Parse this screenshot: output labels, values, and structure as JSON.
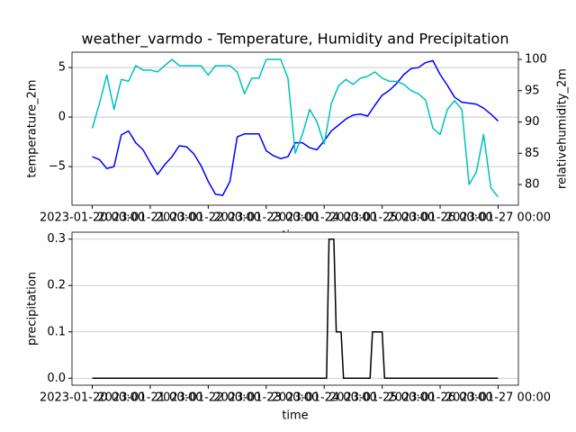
{
  "chart_data": [
    {
      "type": "line",
      "title": "weather_varmdo - Temperature, Humidity and Precipitation",
      "xlabel": "time",
      "ylabel": "temperature_2m",
      "ylabel_color": "#0000ff",
      "y2label": "relativehumidity_2m",
      "y2label_color": "#00bfbf",
      "x": [
        "2023-01-20 00:00",
        "2023-01-20 03:00",
        "2023-01-20 06:00",
        "2023-01-20 09:00",
        "2023-01-20 12:00",
        "2023-01-20 15:00",
        "2023-01-20 18:00",
        "2023-01-20 21:00",
        "2023-01-21 00:00",
        "2023-01-21 03:00",
        "2023-01-21 06:00",
        "2023-01-21 09:00",
        "2023-01-21 12:00",
        "2023-01-21 15:00",
        "2023-01-21 18:00",
        "2023-01-21 21:00",
        "2023-01-22 00:00",
        "2023-01-22 03:00",
        "2023-01-22 06:00",
        "2023-01-22 09:00",
        "2023-01-22 12:00",
        "2023-01-22 15:00",
        "2023-01-22 18:00",
        "2023-01-22 21:00",
        "2023-01-23 00:00",
        "2023-01-23 03:00",
        "2023-01-23 06:00",
        "2023-01-23 09:00",
        "2023-01-23 12:00",
        "2023-01-23 15:00",
        "2023-01-23 18:00",
        "2023-01-23 21:00",
        "2023-01-24 00:00",
        "2023-01-24 03:00",
        "2023-01-24 06:00",
        "2023-01-24 09:00",
        "2023-01-24 12:00",
        "2023-01-24 15:00",
        "2023-01-24 18:00",
        "2023-01-24 21:00",
        "2023-01-25 00:00",
        "2023-01-25 03:00",
        "2023-01-25 06:00",
        "2023-01-25 09:00",
        "2023-01-25 12:00",
        "2023-01-25 15:00",
        "2023-01-25 18:00",
        "2023-01-25 21:00",
        "2023-01-26 00:00",
        "2023-01-26 03:00",
        "2023-01-26 06:00",
        "2023-01-26 09:00",
        "2023-01-26 12:00",
        "2023-01-26 15:00",
        "2023-01-26 18:00",
        "2023-01-26 21:00",
        "2023-01-27 00:00"
      ],
      "series": [
        {
          "color": "#0000ff",
          "values": [
            -4.0,
            -4.3,
            -5.2,
            -5.0,
            -1.8,
            -1.4,
            -2.6,
            -3.3,
            -4.6,
            -5.8,
            -4.8,
            -4.0,
            -2.9,
            -3.0,
            -3.7,
            -4.9,
            -6.5,
            -7.8,
            -7.9,
            -6.5,
            -2.0,
            -1.7,
            -1.7,
            -1.7,
            -3.4,
            -3.9,
            -4.2,
            -4.0,
            -2.6,
            -2.6,
            -3.1,
            -3.3,
            -2.4,
            -1.4,
            -0.8,
            -0.2,
            0.2,
            0.3,
            0.1,
            1.2,
            2.2,
            2.7,
            3.4,
            4.3,
            4.9,
            5.0,
            5.5,
            5.7,
            4.3,
            3.2,
            2.0,
            1.5,
            1.4,
            1.3,
            0.9,
            0.3,
            -0.4
          ]
        },
        {
          "color": "#00bfbf",
          "axis": "y2",
          "values": [
            89.0,
            93.0,
            97.5,
            92.0,
            96.8,
            96.5,
            99.0,
            98.3,
            98.3,
            98.0,
            99.0,
            100.0,
            99.0,
            99.0,
            99.0,
            99.0,
            97.5,
            99.0,
            99.0,
            99.0,
            98.0,
            94.5,
            97.0,
            97.0,
            100.0,
            100.0,
            100.0,
            97.0,
            85.0,
            88.0,
            92.0,
            90.0,
            86.5,
            93.0,
            95.8,
            96.8,
            96.0,
            97.0,
            97.3,
            98.0,
            97.0,
            96.5,
            96.5,
            96.0,
            95.0,
            94.5,
            93.5,
            89.0,
            88.0,
            92.0,
            93.4,
            92.0,
            80.0,
            82.0,
            88.0,
            79.5,
            78.0
          ]
        }
      ],
      "xlim": [
        "2023-01-19 15:36",
        "2023-01-27 08:24"
      ],
      "xticks": [
        "2023-01-20 00:00",
        "2023-01-21 00:00",
        "2023-01-22 00:00",
        "2023-01-23 00:00",
        "2023-01-24 00:00",
        "2023-01-25 00:00",
        "2023-01-26 00:00",
        "2023-01-27 00:00"
      ],
      "ylim": [
        -8.9,
        6.55
      ],
      "yticks": [
        {
          "value": -5,
          "label": "−5"
        },
        0,
        5
      ],
      "y2lim": [
        76.7,
        101.15
      ],
      "y2ticks": [
        80,
        85,
        90,
        95,
        100
      ],
      "grid": true
    },
    {
      "type": "line",
      "xlabel": "time",
      "ylabel": "precipitation",
      "x": [
        "2023-01-20 00:00",
        "2023-01-24 01:00",
        "2023-01-24 02:00",
        "2023-01-24 04:00",
        "2023-01-24 05:00",
        "2023-01-24 07:00",
        "2023-01-24 08:00",
        "2023-01-24 19:00",
        "2023-01-24 20:00",
        "2023-01-25 00:00",
        "2023-01-25 01:00",
        "2023-01-27 00:00"
      ],
      "series": [
        {
          "color": "#000000",
          "values": [
            0,
            0,
            0.3,
            0.3,
            0.1,
            0.1,
            0,
            0,
            0.1,
            0.1,
            0,
            0
          ]
        }
      ],
      "xlim": [
        "2023-01-19 15:36",
        "2023-01-27 08:24"
      ],
      "xticks": [
        "2023-01-20 00:00",
        "2023-01-21 00:00",
        "2023-01-22 00:00",
        "2023-01-23 00:00",
        "2023-01-24 00:00",
        "2023-01-25 00:00",
        "2023-01-26 00:00",
        "2023-01-27 00:00"
      ],
      "ylim": [
        -0.015,
        0.315
      ],
      "yticks": [
        {
          "value": 0,
          "label": "0.0"
        },
        0.1,
        0.2,
        0.3
      ],
      "grid": true
    }
  ]
}
